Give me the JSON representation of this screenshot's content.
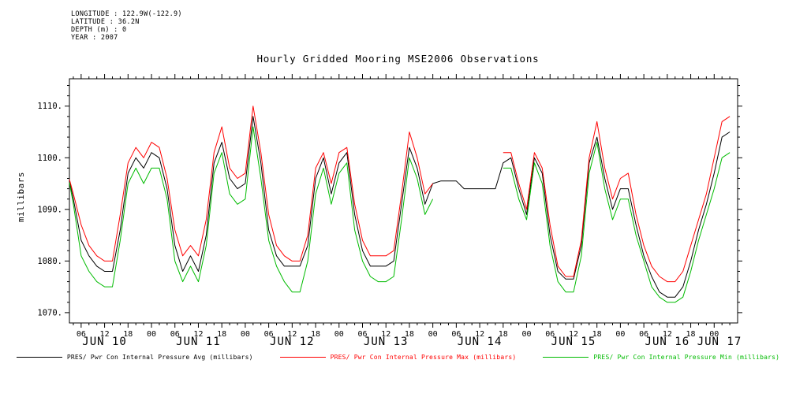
{
  "header": {
    "lines": [
      "LONGITUDE : 122.9W(-122.9)",
      "LATITUDE : 36.2N",
      "DEPTH (m) : 0",
      "YEAR : 2007"
    ]
  },
  "chart_data": {
    "type": "line",
    "title": "Hourly Gridded Mooring MSE2006 Observations",
    "xlabel": "",
    "ylabel": "millibars",
    "x_unit": "hours from JUN 10 00:00 2007",
    "ylim": [
      1068,
      1115.3
    ],
    "xlim_hours": [
      3,
      174
    ],
    "yticks": [
      1070,
      1080,
      1090,
      1100,
      1110
    ],
    "ytick_labels": [
      "1070.",
      "1080.",
      "1090.",
      "1100.",
      "1110."
    ],
    "xtick_cycle": [
      "06",
      "12",
      "18",
      "00"
    ],
    "day_labels": [
      "JUN 10",
      "JUN 11",
      "JUN 12",
      "JUN 13",
      "JUN 14",
      "JUN 15",
      "JUN 16",
      "JUN 17"
    ],
    "grid": false,
    "legend_position": "bottom",
    "x_hours": [
      3,
      4,
      6,
      8,
      10,
      12,
      14,
      16,
      18,
      20,
      22,
      24,
      26,
      28,
      30,
      32,
      34,
      36,
      38,
      40,
      42,
      44,
      46,
      48,
      50,
      52,
      54,
      56,
      58,
      60,
      62,
      64,
      66,
      68,
      70,
      72,
      74,
      76,
      78,
      80,
      82,
      84,
      86,
      88,
      90,
      92,
      94,
      96,
      98,
      100,
      102,
      104,
      106,
      108,
      110,
      112,
      114,
      116,
      118,
      120,
      122,
      124,
      126,
      128,
      130,
      132,
      134,
      136,
      138,
      140,
      142,
      144,
      146,
      148,
      150,
      152,
      154,
      156,
      158,
      160,
      162,
      164,
      166,
      168,
      170,
      172
    ],
    "series": [
      {
        "key": "avg",
        "name": "PRES/ Pwr Con Internal Pressure Avg (millibars)",
        "color": "#000000",
        "values": [
          1095.5,
          1092,
          1084,
          1081,
          1079,
          1078,
          1078,
          1086,
          1097,
          1100,
          1098,
          1101,
          1100,
          1094,
          1083,
          1078,
          1081,
          1078,
          1085,
          1099,
          1103,
          1096,
          1094,
          1095,
          1108,
          1099,
          1086,
          1081,
          1079,
          1079,
          1079,
          1083,
          1096,
          1100,
          1093,
          1099,
          1101,
          1089,
          1082,
          1079,
          1079,
          1079,
          1080,
          1091,
          1102,
          1098,
          1091,
          1095,
          1095.5,
          1095.5,
          1095.5,
          1094,
          1094,
          1094,
          1094,
          1094,
          1099,
          1100,
          1094,
          1089,
          1100,
          1097,
          1085,
          1078,
          1076.5,
          1076.5,
          1083,
          1099,
          1104,
          1096,
          1090,
          1094,
          1094,
          1087,
          1081,
          1077,
          1074,
          1073,
          1073,
          1075,
          1080,
          1086,
          1091,
          1097,
          1104,
          1105
        ]
      },
      {
        "key": "max",
        "name": "PRES/ Pwr Con Internal Pressure Max (millibars)",
        "color": "#ff0000",
        "values": [
          1095.8,
          1093,
          1087,
          1083,
          1081,
          1080,
          1080,
          1089,
          1099,
          1102,
          1100,
          1103,
          1102,
          1096,
          1086,
          1081,
          1083,
          1081,
          1088,
          1101,
          1106,
          1098,
          1096,
          1097,
          1110,
          1101,
          1089,
          1083,
          1081,
          1080,
          1080,
          1085,
          1098,
          1101,
          1095,
          1101,
          1102,
          1091,
          1084,
          1081,
          1081,
          1081,
          1082,
          1093,
          1105,
          1100,
          1093,
          1095,
          null,
          null,
          null,
          null,
          null,
          null,
          null,
          null,
          1101,
          1101,
          1095,
          1090,
          1101,
          1098,
          1087,
          1079,
          1077,
          1077,
          1084,
          1100,
          1107,
          1098,
          1092,
          1096,
          1097,
          1089,
          1083,
          1079,
          1077,
          1076,
          1076,
          1078,
          1083,
          1088,
          1093,
          1100,
          1107,
          1108
        ]
      },
      {
        "key": "min",
        "name": "PRES/ Pwr Con Internal Pressure Min (millibars)",
        "color": "#00bb00",
        "values": [
          1095.2,
          1091,
          1081,
          1078,
          1076,
          1075,
          1075,
          1084,
          1095,
          1098,
          1095,
          1098,
          1098,
          1092,
          1080,
          1076,
          1079,
          1076,
          1083,
          1097,
          1101,
          1093,
          1091,
          1092,
          1106,
          1096,
          1084,
          1079,
          1076,
          1074,
          1074,
          1080,
          1093,
          1098,
          1091,
          1097,
          1099,
          1086,
          1080,
          1077,
          1076,
          1076,
          1077,
          1088,
          1100,
          1096,
          1089,
          1092,
          null,
          null,
          null,
          null,
          null,
          null,
          null,
          null,
          1098,
          1098,
          1092,
          1088,
          1099,
          1095,
          1083,
          1076,
          1074,
          1074,
          1081,
          1097,
          1103,
          1094,
          1088,
          1092,
          1092,
          1085,
          1080,
          1075,
          1073,
          1072,
          1072,
          1073,
          1078,
          1084,
          1089,
          1094,
          1100,
          1101
        ]
      }
    ]
  }
}
